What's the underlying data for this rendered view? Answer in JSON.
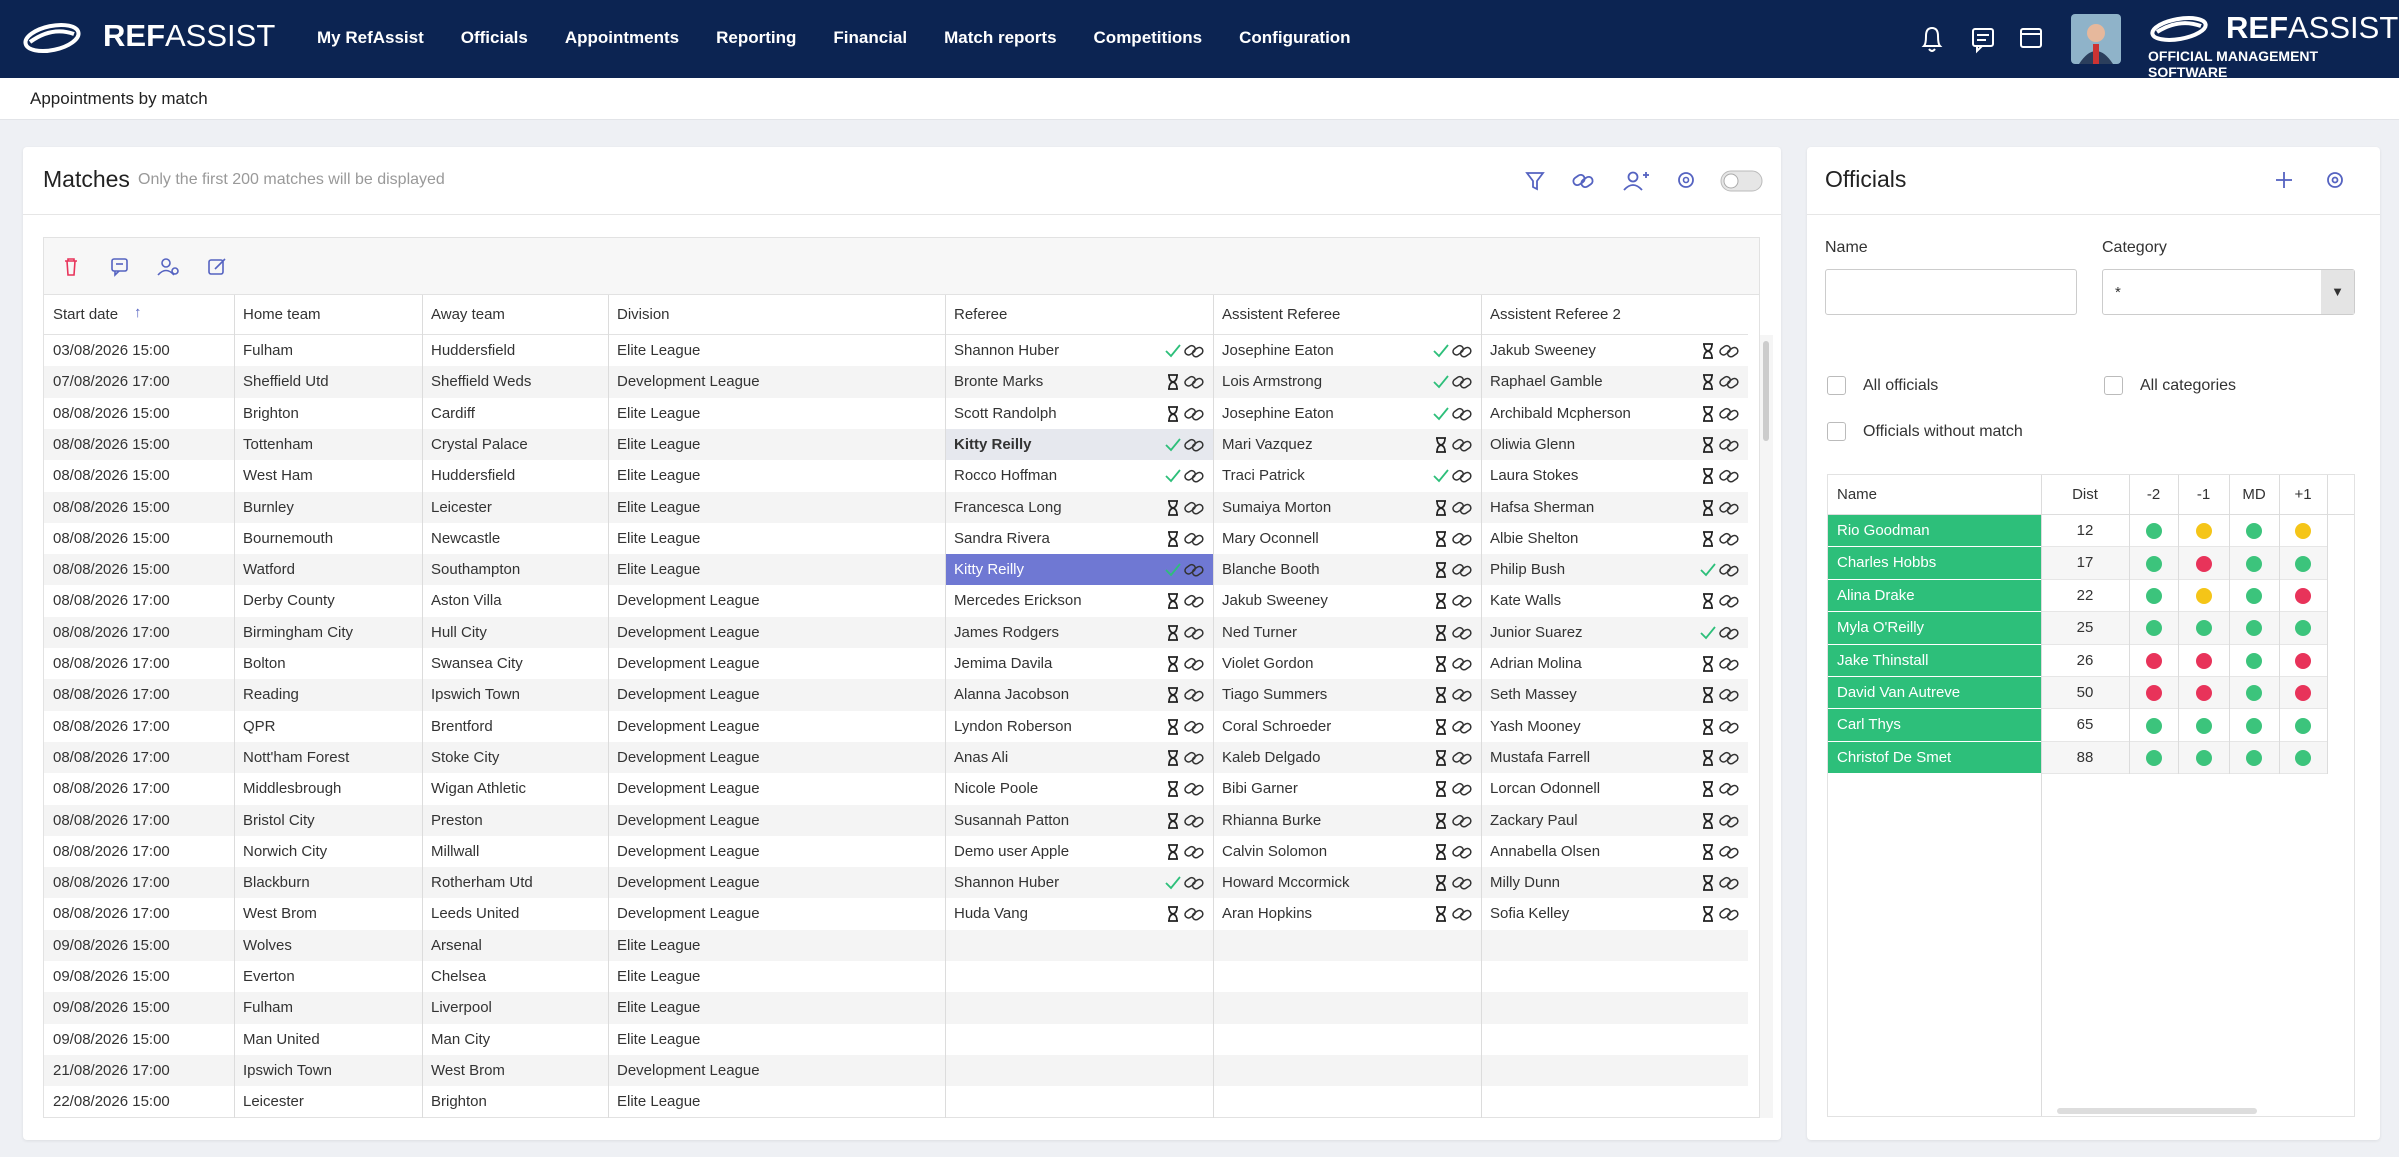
{
  "nav": {
    "brand": {
      "bold": "REF",
      "light": "ASSIST"
    },
    "items": [
      "My RefAssist",
      "Officials",
      "Appointments",
      "Reporting",
      "Financial",
      "Match reports",
      "Competitions",
      "Configuration"
    ],
    "logo": {
      "bold": "REF",
      "light": "ASSIST",
      "tagline": "OFFICIAL MANAGEMENT SOFTWARE"
    }
  },
  "breadcrumb": "Appointments by match",
  "matches": {
    "title": "Matches",
    "note": "Only the first 200 matches will be displayed",
    "columns": [
      "Start date",
      "Home team",
      "Away team",
      "Division",
      "Referee",
      "Assistent Referee",
      "Assistent Referee 2"
    ],
    "rows": [
      [
        "03/08/2026 15:00",
        "Fulham",
        "Huddersfield",
        "Elite League",
        "Shannon Huber",
        "Josephine Eaton",
        "Jakub Sweeney"
      ],
      [
        "07/08/2026 17:00",
        "Sheffield Utd",
        "Sheffield Weds",
        "Development League",
        "Bronte Marks",
        "Lois Armstrong",
        "Raphael Gamble"
      ],
      [
        "08/08/2026 15:00",
        "Brighton",
        "Cardiff",
        "Elite League",
        "Scott Randolph",
        "Josephine Eaton",
        "Archibald Mcpherson"
      ],
      [
        "08/08/2026 15:00",
        "Tottenham",
        "Crystal Palace",
        "Elite League",
        "Kitty Reilly",
        "Mari Vazquez",
        "Oliwia Glenn"
      ],
      [
        "08/08/2026 15:00",
        "West Ham",
        "Huddersfield",
        "Elite League",
        "Rocco Hoffman",
        "Traci Patrick",
        "Laura Stokes"
      ],
      [
        "08/08/2026 15:00",
        "Burnley",
        "Leicester",
        "Elite League",
        "Francesca Long",
        "Sumaiya Morton",
        "Hafsa Sherman"
      ],
      [
        "08/08/2026 15:00",
        "Bournemouth",
        "Newcastle",
        "Elite League",
        "Sandra Rivera",
        "Mary Oconnell",
        "Albie Shelton"
      ],
      [
        "08/08/2026 15:00",
        "Watford",
        "Southampton",
        "Elite League",
        "Kitty Reilly",
        "Blanche Booth",
        "Philip Bush"
      ],
      [
        "08/08/2026 17:00",
        "Derby County",
        "Aston Villa",
        "Development League",
        "Mercedes Erickson",
        "Jakub Sweeney",
        "Kate Walls"
      ],
      [
        "08/08/2026 17:00",
        "Birmingham City",
        "Hull City",
        "Development League",
        "James Rodgers",
        "Ned Turner",
        "Junior Suarez"
      ],
      [
        "08/08/2026 17:00",
        "Bolton",
        "Swansea City",
        "Development League",
        "Jemima Davila",
        "Violet Gordon",
        "Adrian Molina"
      ],
      [
        "08/08/2026 17:00",
        "Reading",
        "Ipswich Town",
        "Development League",
        "Alanna Jacobson",
        "Tiago Summers",
        "Seth Massey"
      ],
      [
        "08/08/2026 17:00",
        "QPR",
        "Brentford",
        "Development League",
        "Lyndon Roberson",
        "Coral Schroeder",
        "Yash Mooney"
      ],
      [
        "08/08/2026 17:00",
        "Nott'ham Forest",
        "Stoke City",
        "Development League",
        "Anas Ali",
        "Kaleb Delgado",
        "Mustafa Farrell"
      ],
      [
        "08/08/2026 17:00",
        "Middlesbrough",
        "Wigan Athletic",
        "Development League",
        "Nicole Poole",
        "Bibi Garner",
        "Lorcan Odonnell"
      ],
      [
        "08/08/2026 17:00",
        "Bristol City",
        "Preston",
        "Development League",
        "Susannah Patton",
        "Rhianna Burke",
        "Zackary Paul"
      ],
      [
        "08/08/2026 17:00",
        "Norwich City",
        "Millwall",
        "Development League",
        "Demo user Apple",
        "Calvin Solomon",
        "Annabella Olsen"
      ],
      [
        "08/08/2026 17:00",
        "Blackburn",
        "Rotherham Utd",
        "Development League",
        "Shannon Huber",
        "Howard Mccormick",
        "Milly Dunn"
      ],
      [
        "08/08/2026 17:00",
        "West Brom",
        "Leeds United",
        "Development League",
        "Huda Vang",
        "Aran Hopkins",
        "Sofia Kelley"
      ],
      [
        "09/08/2026 15:00",
        "Wolves",
        "Arsenal",
        "Elite League"
      ],
      [
        "09/08/2026 15:00",
        "Everton",
        "Chelsea",
        "Elite League"
      ],
      [
        "09/08/2026 15:00",
        "Fulham",
        "Liverpool",
        "Elite League"
      ],
      [
        "09/08/2026 15:00",
        "Man United",
        "Man City",
        "Elite League"
      ],
      [
        "21/08/2026 17:00",
        "Ipswich Town",
        "West Brom",
        "Development League"
      ],
      [
        "22/08/2026 15:00",
        "Leicester",
        "Brighton",
        "Elite League"
      ]
    ],
    "confirmed": [
      [
        true,
        true,
        false
      ],
      [
        false,
        true,
        false
      ],
      [
        false,
        true,
        false
      ],
      [
        true,
        false,
        false
      ],
      [
        true,
        true,
        false
      ],
      [
        false,
        false,
        false
      ],
      [
        false,
        false,
        false
      ],
      [
        true,
        false,
        true
      ],
      [
        false,
        false,
        false
      ],
      [
        false,
        false,
        true
      ],
      [
        false,
        false,
        false
      ],
      [
        false,
        false,
        false
      ],
      [
        false,
        false,
        false
      ],
      [
        false,
        false,
        false
      ],
      [
        false,
        false,
        false
      ],
      [
        false,
        false,
        false
      ],
      [
        false,
        false,
        false
      ],
      [
        true,
        false,
        false
      ],
      [
        false,
        false,
        false
      ]
    ]
  },
  "officials": {
    "title": "Officials",
    "name_label": "Name",
    "category_label": "Category",
    "category_value": "*",
    "checkboxes": [
      "All officials",
      "All categories",
      "Officials without match"
    ],
    "columns": [
      "Name",
      "Dist",
      "-2",
      "-1",
      "MD",
      "+1"
    ],
    "rows": [
      {
        "name": "Rio Goodman",
        "dist": 12,
        "availability": [
          "#3cc47c",
          "#f5c518",
          "#3cc47c",
          "#f5c518"
        ]
      },
      {
        "name": "Charles Hobbs",
        "dist": 17,
        "availability": [
          "#3cc47c",
          "#e8335a",
          "#3cc47c",
          "#3cc47c"
        ]
      },
      {
        "name": "Alina Drake",
        "dist": 22,
        "availability": [
          "#3cc47c",
          "#f5c518",
          "#3cc47c",
          "#e8335a"
        ]
      },
      {
        "name": "Myla O'Reilly",
        "dist": 25,
        "availability": [
          "#3cc47c",
          "#3cc47c",
          "#3cc47c",
          "#3cc47c"
        ]
      },
      {
        "name": "Jake Thinstall",
        "dist": 26,
        "availability": [
          "#e8335a",
          "#e8335a",
          "#3cc47c",
          "#e8335a"
        ]
      },
      {
        "name": "David Van Autreve",
        "dist": 50,
        "availability": [
          "#e8335a",
          "#e8335a",
          "#3cc47c",
          "#e8335a"
        ]
      },
      {
        "name": "Carl Thys",
        "dist": 65,
        "availability": [
          "#3cc47c",
          "#3cc47c",
          "#3cc47c",
          "#3cc47c"
        ]
      },
      {
        "name": "Christof De Smet",
        "dist": 88,
        "availability": [
          "#3cc47c",
          "#3cc47c",
          "#3cc47c",
          "#3cc47c"
        ]
      }
    ]
  }
}
